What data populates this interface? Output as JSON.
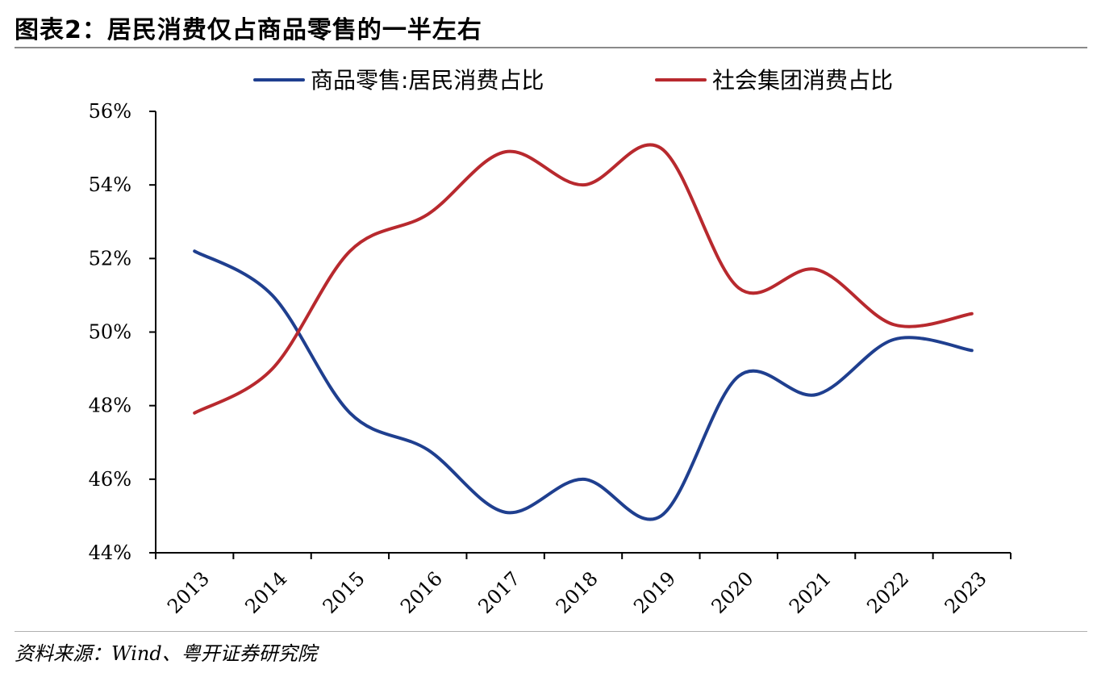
{
  "figure_title": "图表2：居民消费仅占商品零售的一半左右",
  "source_note": "资料来源：Wind、粤开证券研究院",
  "colors": {
    "series_1": "#1f3f8f",
    "series_2": "#b8292e",
    "axis": "#000000",
    "title_rule": "#8a8a8a"
  },
  "chart_data": {
    "type": "line",
    "x": [
      "2013",
      "2014",
      "2015",
      "2016",
      "2017",
      "2018",
      "2019",
      "2020",
      "2021",
      "2022",
      "2023"
    ],
    "series": [
      {
        "name": "商品零售:居民消费占比",
        "values": [
          52.2,
          51.0,
          47.8,
          46.8,
          45.1,
          46.0,
          45.0,
          48.8,
          48.3,
          49.8,
          49.5
        ]
      },
      {
        "name": "社会集团消费占比",
        "values": [
          47.8,
          49.0,
          52.2,
          53.2,
          54.9,
          54.0,
          55.0,
          51.2,
          51.7,
          50.2,
          50.5
        ]
      }
    ],
    "ylim": [
      44,
      56
    ],
    "yticks": [
      "44%",
      "46%",
      "48%",
      "50%",
      "52%",
      "54%",
      "56%"
    ],
    "ytick_values": [
      44,
      46,
      48,
      50,
      52,
      54,
      56
    ],
    "legend_position": "top",
    "grid": false,
    "xlabel": "",
    "ylabel": ""
  }
}
